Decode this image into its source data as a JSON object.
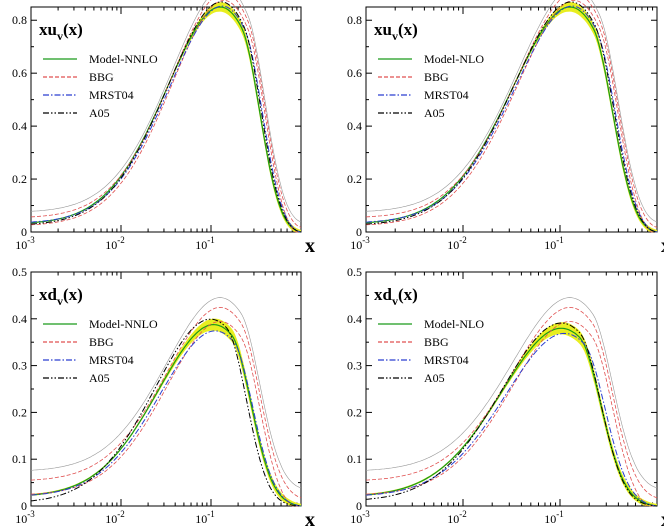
{
  "chart_data": [
    {
      "type": "line",
      "panel": "top-left",
      "title_main": "xu",
      "title_sub": "v",
      "title_tail": "(x)",
      "xlabel": "x",
      "xscale": "log",
      "xlim": [
        0.001,
        1
      ],
      "ylim": [
        0,
        0.85
      ],
      "yticks": [
        0,
        0.2,
        0.4,
        0.6,
        0.8
      ],
      "ytick_labels": [
        "0",
        "0.2",
        "0.4",
        "0.6",
        "0.8"
      ],
      "xtick_labels": [
        {
          "base": "10",
          "exp": "-3"
        },
        {
          "base": "10",
          "exp": "-2"
        },
        {
          "base": "10",
          "exp": "-1"
        }
      ],
      "legend_position": "top-left",
      "legend": [
        {
          "label": "Model-NNLO",
          "style": "solid",
          "color": "#1a9a1a"
        },
        {
          "label": "BBG",
          "style": "dashed",
          "color": "#e05050"
        },
        {
          "label": "MRST04",
          "style": "dashdot",
          "color": "#2a3fd0"
        },
        {
          "label": "A05",
          "style": "dashdotdot",
          "color": "#000000"
        }
      ],
      "series": [
        {
          "name": "Model-NNLO",
          "peak": 0.77,
          "xpeak": 0.22,
          "low": 0.03,
          "band": 0.018
        },
        {
          "name": "BBG",
          "peak": 0.775,
          "xpeak": 0.26,
          "low": 0.035,
          "band": 0.03
        },
        {
          "name": "MRST04",
          "peak": 0.76,
          "xpeak": 0.24,
          "low": 0.033
        },
        {
          "name": "A05",
          "peak": 0.78,
          "xpeak": 0.23,
          "low": 0.025
        }
      ]
    },
    {
      "type": "line",
      "panel": "top-right",
      "title_main": "xu",
      "title_sub": "v",
      "title_tail": "(x)",
      "xlabel": "x",
      "xscale": "log",
      "xlim": [
        0.001,
        1
      ],
      "ylim": [
        0,
        0.85
      ],
      "yticks": [
        0,
        0.2,
        0.4,
        0.6,
        0.8
      ],
      "ytick_labels": [
        "0",
        "0.2",
        "0.4",
        "0.6",
        "0.8"
      ],
      "xtick_labels": [
        {
          "base": "10",
          "exp": "-3"
        },
        {
          "base": "10",
          "exp": "-2"
        },
        {
          "base": "10",
          "exp": "-1"
        }
      ],
      "legend_position": "top-left",
      "legend": [
        {
          "label": "Model-NLO",
          "style": "solid",
          "color": "#1a9a1a"
        },
        {
          "label": "BBG",
          "style": "dashed",
          "color": "#e05050"
        },
        {
          "label": "MRST04",
          "style": "dashdot",
          "color": "#2a3fd0"
        },
        {
          "label": "A05",
          "style": "dashdotdot",
          "color": "#000000"
        }
      ],
      "series": [
        {
          "name": "Model-NLO",
          "peak": 0.77,
          "xpeak": 0.22,
          "low": 0.03,
          "band": 0.018
        },
        {
          "name": "BBG",
          "peak": 0.775,
          "xpeak": 0.26,
          "low": 0.035,
          "band": 0.03
        },
        {
          "name": "MRST04",
          "peak": 0.76,
          "xpeak": 0.24,
          "low": 0.033
        },
        {
          "name": "A05",
          "peak": 0.78,
          "xpeak": 0.23,
          "low": 0.025
        }
      ]
    },
    {
      "type": "line",
      "panel": "bottom-left",
      "title_main": "xd",
      "title_sub": "v",
      "title_tail": "(x)",
      "xlabel": "x",
      "xscale": "log",
      "xlim": [
        0.001,
        1
      ],
      "ylim": [
        0,
        0.5
      ],
      "yticks": [
        0,
        0.1,
        0.2,
        0.3,
        0.4,
        0.5
      ],
      "ytick_labels": [
        "0",
        "0.1",
        "0.2",
        "0.3",
        "0.4",
        "0.5"
      ],
      "xtick_labels": [
        {
          "base": "10",
          "exp": "-3"
        },
        {
          "base": "10",
          "exp": "-2"
        },
        {
          "base": "10",
          "exp": "-1"
        }
      ],
      "legend_position": "top-left",
      "legend": [
        {
          "label": "Model-NNLO",
          "style": "solid",
          "color": "#1a9a1a"
        },
        {
          "label": "BBG",
          "style": "dashed",
          "color": "#e05050"
        },
        {
          "label": "MRST04",
          "style": "dashdot",
          "color": "#2a3fd0"
        },
        {
          "label": "A05",
          "style": "dashdotdot",
          "color": "#000000"
        }
      ],
      "series": [
        {
          "name": "Model-NNLO",
          "peak": 0.365,
          "xpeak": 0.17,
          "low": 0.02,
          "band": 0.012
        },
        {
          "name": "BBG",
          "peak": 0.37,
          "xpeak": 0.22,
          "low": 0.035,
          "band": 0.03
        },
        {
          "name": "MRST04",
          "peak": 0.35,
          "xpeak": 0.18,
          "low": 0.02
        },
        {
          "name": "A05",
          "peak": 0.38,
          "xpeak": 0.15,
          "low": 0.006
        }
      ]
    },
    {
      "type": "line",
      "panel": "bottom-right",
      "title_main": "xd",
      "title_sub": "v",
      "title_tail": "(x)",
      "xlabel": "x",
      "xscale": "log",
      "xlim": [
        0.001,
        1
      ],
      "ylim": [
        0,
        0.5
      ],
      "yticks": [
        0,
        0.1,
        0.2,
        0.3,
        0.4,
        0.5
      ],
      "ytick_labels": [
        "0",
        "0.1",
        "0.2",
        "0.3",
        "0.4",
        "0.5"
      ],
      "xtick_labels": [
        {
          "base": "10",
          "exp": "-3"
        },
        {
          "base": "10",
          "exp": "-2"
        },
        {
          "base": "10",
          "exp": "-1"
        }
      ],
      "legend_position": "top-left",
      "legend": [
        {
          "label": "Model-NLO",
          "style": "solid",
          "color": "#1a9a1a"
        },
        {
          "label": "BBG",
          "style": "dashed",
          "color": "#e05050"
        },
        {
          "label": "MRST04",
          "style": "dashdot",
          "color": "#2a3fd0"
        },
        {
          "label": "A05",
          "style": "dashdotdot",
          "color": "#000000"
        }
      ],
      "series": [
        {
          "name": "Model-NLO",
          "peak": 0.36,
          "xpeak": 0.16,
          "low": 0.02,
          "band": 0.012
        },
        {
          "name": "BBG",
          "peak": 0.37,
          "xpeak": 0.22,
          "low": 0.035,
          "band": 0.03
        },
        {
          "name": "MRST04",
          "peak": 0.345,
          "xpeak": 0.18,
          "low": 0.02
        },
        {
          "name": "A05",
          "peak": 0.37,
          "xpeak": 0.16,
          "low": 0.01
        }
      ]
    }
  ],
  "band_color": "#e8ee20"
}
